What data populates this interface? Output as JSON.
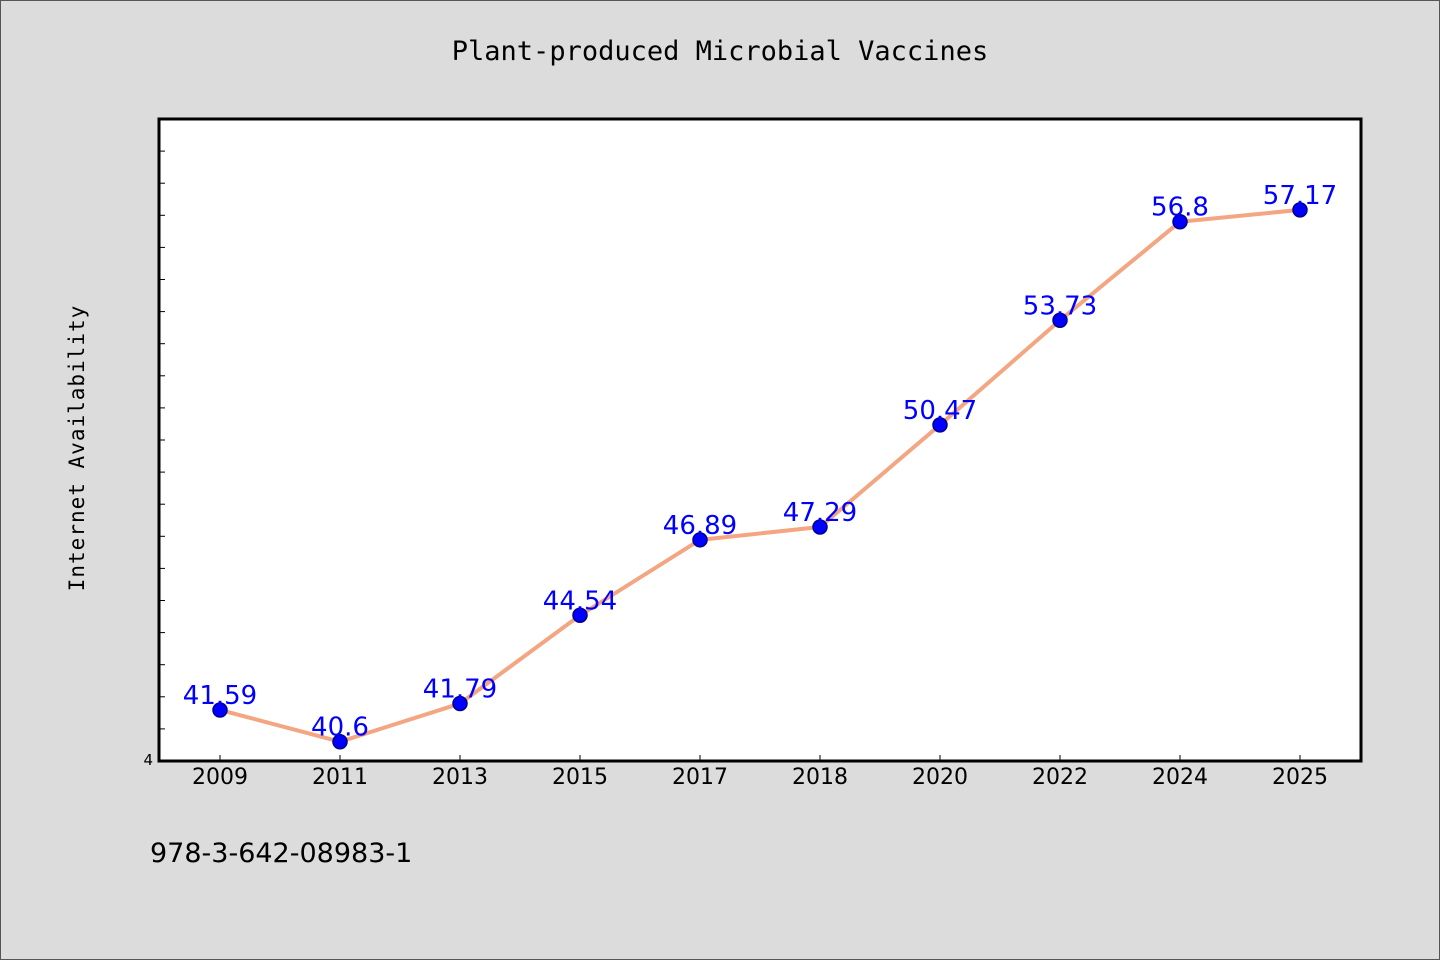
{
  "chart_data": {
    "type": "line",
    "title": "Plant-produced Microbial Vaccines",
    "xlabel": "",
    "ylabel": "Internet Availability",
    "categories": [
      "2009",
      "2011",
      "2013",
      "2015",
      "2017",
      "2018",
      "2020",
      "2022",
      "2024",
      "2025"
    ],
    "series": [
      {
        "values": [
          41.59,
          40.6,
          41.79,
          44.54,
          46.89,
          47.29,
          50.47,
          53.73,
          56.8,
          57.17
        ],
        "data_labels": [
          "41.59",
          "40.6",
          "41.79",
          "44.54",
          "46.89",
          "47.29",
          "50.47",
          "53.73",
          "56.8",
          "57.17"
        ]
      }
    ],
    "ylim": [
      40,
      60
    ],
    "y_tick_labels": [
      "4"
    ],
    "grid": false,
    "legend": "none",
    "colors": {
      "line": "#f4a582",
      "marker_fill": "#0000ff",
      "marker_edge": "#00008b",
      "data_label": "#0000ff",
      "background": "#dcdcdc",
      "plot_background": "#ffffff"
    }
  },
  "footer": {
    "isbn": "978-3-642-08983-1"
  }
}
